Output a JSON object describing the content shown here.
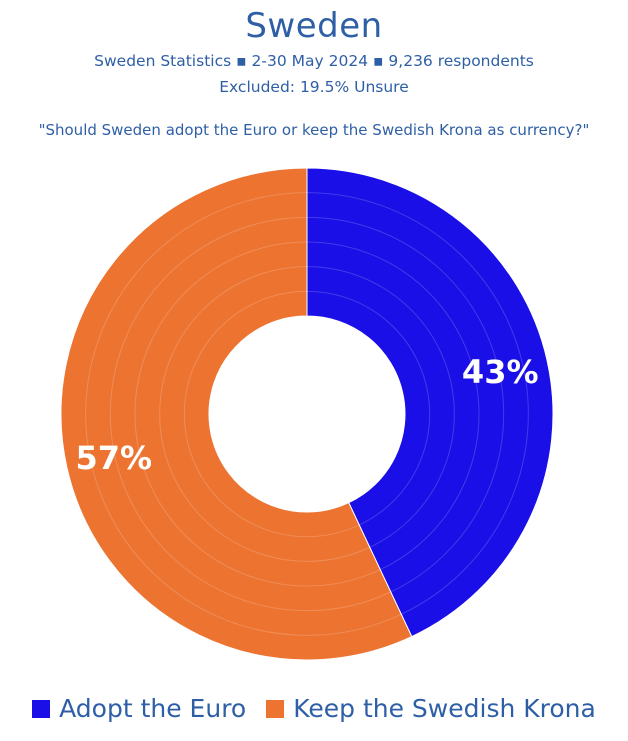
{
  "header": {
    "title": "Sweden",
    "subtitle": "Sweden Statistics ▪ 2-30 May 2024 ▪ 9,236 respondents",
    "excluded": "Excluded: 19.5% Unsure",
    "question": "\"Should Sweden adopt the Euro or keep the Swedish Krona as currency?\""
  },
  "chart_data": {
    "type": "pie",
    "variant": "donut",
    "title": "Sweden",
    "subtitle": "Sweden Statistics ▪ 2-30 May 2024 ▪ 9,236 respondents",
    "categories": [
      "Adopt the Euro",
      "Keep the Swedish Krona"
    ],
    "values": [
      43,
      57
    ],
    "labels": [
      "43%",
      "57%"
    ],
    "colors": [
      "#1a0fe6",
      "#ed7331"
    ],
    "start": "top",
    "direction": "clockwise",
    "legend_position": "bottom"
  },
  "legend": {
    "items": [
      {
        "label": "Adopt the Euro",
        "color": "#1a0fe6"
      },
      {
        "label": "Keep the Swedish Krona",
        "color": "#ed7331"
      }
    ]
  }
}
